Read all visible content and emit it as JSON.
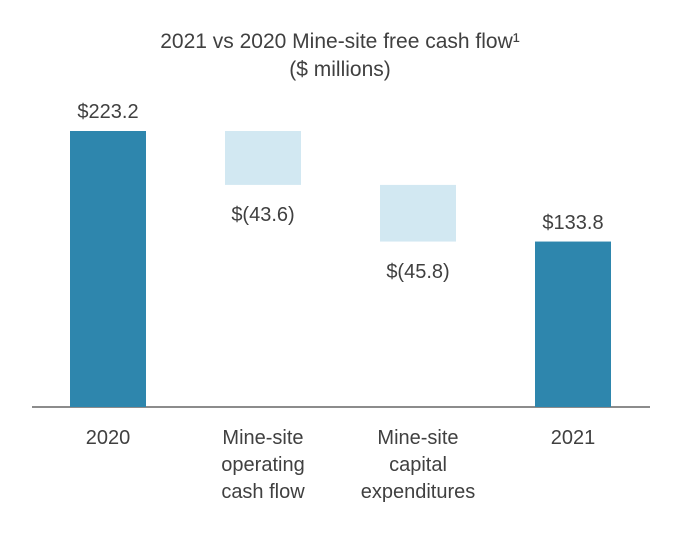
{
  "chart_data": {
    "type": "bar",
    "subtype": "waterfall",
    "title": "2021 vs 2020 Mine-site free cash flow¹",
    "subtitle": "($ millions)",
    "categories": [
      [
        "2020"
      ],
      [
        "Mine-site",
        "operating",
        "cash flow"
      ],
      [
        "Mine-site",
        "capital",
        "expenditures"
      ],
      [
        "2021"
      ]
    ],
    "values": [
      223.2,
      -43.6,
      -45.8,
      133.8
    ],
    "kinds": [
      "total",
      "delta",
      "delta",
      "total"
    ],
    "value_labels": [
      "$223.2",
      "$(43.6)",
      "$(45.8)",
      "$133.8"
    ],
    "ylim": [
      0,
      223.2
    ],
    "grid": false,
    "legend": "none",
    "colors": {
      "total": "#2e86ad",
      "delta": "#d2e8f2",
      "axis": "#8c8c8c",
      "text": "#404040"
    }
  }
}
